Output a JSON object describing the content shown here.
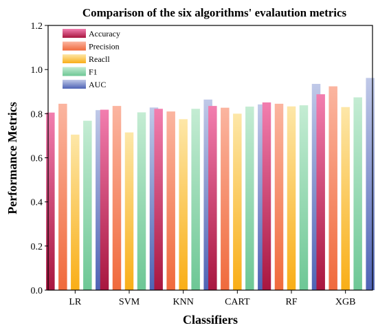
{
  "chart_data": {
    "type": "bar",
    "title": "Comparison of the six algorithms' evalaution metrics",
    "xlabel": "Classifiers",
    "ylabel": "Performance Metrics",
    "ylim": [
      0.0,
      1.2
    ],
    "yticks": [
      "0.0",
      "0.2",
      "0.4",
      "0.6",
      "0.8",
      "1.0",
      "1.2"
    ],
    "categories": [
      "LR",
      "SVM",
      "KNN",
      "CART",
      "RF",
      "XGB"
    ],
    "grid": false,
    "legend_position": "top-left",
    "series": [
      {
        "name": "Accuracy",
        "values": [
          0.805,
          0.818,
          0.822,
          0.835,
          0.851,
          0.888
        ],
        "color_top": "#f27eaf",
        "color_bottom": "#a8163f"
      },
      {
        "name": "Precision",
        "values": [
          0.845,
          0.835,
          0.81,
          0.827,
          0.845,
          0.924
        ],
        "color_top": "#fbb5a0",
        "color_bottom": "#f06a3c"
      },
      {
        "name": "Reacll",
        "values": [
          0.705,
          0.715,
          0.775,
          0.8,
          0.833,
          0.83
        ],
        "color_top": "#fde7a8",
        "color_bottom": "#f9ae17"
      },
      {
        "name": "F1",
        "values": [
          0.768,
          0.806,
          0.822,
          0.832,
          0.838,
          0.874
        ],
        "color_top": "#c4ecd3",
        "color_bottom": "#6dc795"
      },
      {
        "name": "AUC",
        "values": [
          0.816,
          0.828,
          0.864,
          0.842,
          0.935,
          0.962
        ],
        "color_top": "#c0c9e8",
        "color_bottom": "#4e63b5"
      }
    ]
  }
}
